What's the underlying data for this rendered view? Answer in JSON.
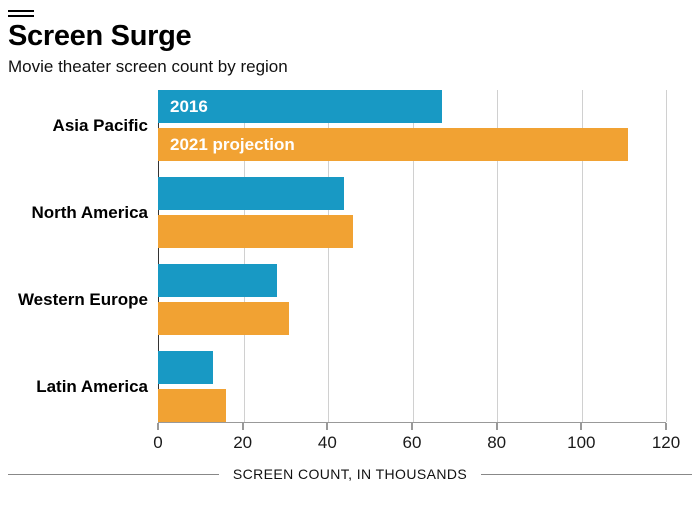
{
  "header": {
    "title": "Screen Surge",
    "subtitle": "Movie theater screen count by region"
  },
  "chart_data": {
    "type": "bar",
    "orientation": "horizontal",
    "title": "Screen Surge",
    "subtitle": "Movie theater screen count by region",
    "categories": [
      "Asia Pacific",
      "North America",
      "Western Europe",
      "Latin America"
    ],
    "series": [
      {
        "name": "2016",
        "color": "#1899c4",
        "values": [
          67,
          44,
          28,
          13
        ]
      },
      {
        "name": "2021 projection",
        "color": "#f1a233",
        "values": [
          111,
          46,
          31,
          16
        ]
      }
    ],
    "xlabel": "SCREEN COUNT, IN THOUSANDS",
    "ylabel": "",
    "xlim": [
      0,
      120
    ],
    "xticks": [
      0,
      20,
      40,
      60,
      80,
      100,
      120
    ],
    "grid": true,
    "legend_position": "inside-first-bars"
  }
}
